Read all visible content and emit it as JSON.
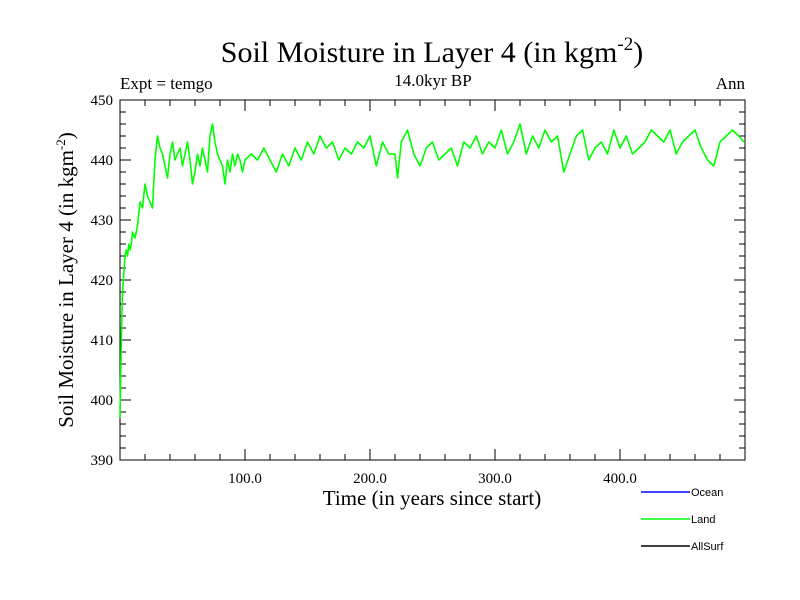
{
  "chart_data": {
    "type": "line",
    "title": {
      "text": "Soil Moisture in Layer 4 (in kgm",
      "sup": "-2",
      "close": ")"
    },
    "subtitle_left": "Expt = temgo",
    "subtitle_center": "14.0kyr BP",
    "subtitle_right": "Ann",
    "xlabel": "Time (in years since start)",
    "ylabel": {
      "text": "Soil Moisture in Layer 4 (in kgm",
      "sup": "-2",
      "close": ")"
    },
    "xlim": [
      0,
      500
    ],
    "ylim": [
      390,
      450
    ],
    "x_ticks": [
      {
        "value": 100,
        "label": "100.0"
      },
      {
        "value": 200,
        "label": "200.0"
      },
      {
        "value": 300,
        "label": "300.0"
      },
      {
        "value": 400,
        "label": "400.0"
      }
    ],
    "y_ticks": [
      {
        "value": 390,
        "label": "390"
      },
      {
        "value": 400,
        "label": "400"
      },
      {
        "value": 410,
        "label": "410"
      },
      {
        "value": 420,
        "label": "420"
      },
      {
        "value": 430,
        "label": "430"
      },
      {
        "value": 440,
        "label": "440"
      },
      {
        "value": 450,
        "label": "450"
      }
    ],
    "legend_position": "bottom-right",
    "series": [
      {
        "name": "Ocean",
        "color": "#0000ff",
        "x": [],
        "y": []
      },
      {
        "name": "Land",
        "color": "#00ff00",
        "x": [
          0,
          1,
          2,
          3,
          4,
          5,
          6,
          7,
          8,
          9,
          10,
          12,
          14,
          16,
          18,
          20,
          22,
          24,
          26,
          28,
          30,
          32,
          34,
          36,
          38,
          40,
          42,
          44,
          46,
          48,
          50,
          52,
          54,
          56,
          58,
          60,
          62,
          64,
          66,
          68,
          70,
          72,
          74,
          76,
          78,
          80,
          82,
          84,
          86,
          88,
          90,
          92,
          94,
          96,
          98,
          100,
          105,
          110,
          115,
          120,
          125,
          130,
          135,
          140,
          145,
          150,
          155,
          160,
          165,
          170,
          175,
          180,
          185,
          190,
          195,
          200,
          205,
          210,
          215,
          220,
          222,
          225,
          230,
          235,
          240,
          245,
          250,
          255,
          260,
          265,
          270,
          275,
          280,
          285,
          290,
          295,
          300,
          305,
          310,
          315,
          320,
          325,
          330,
          335,
          340,
          345,
          350,
          355,
          360,
          365,
          370,
          375,
          380,
          385,
          390,
          395,
          400,
          405,
          410,
          415,
          420,
          425,
          430,
          435,
          440,
          445,
          450,
          455,
          460,
          465,
          470,
          475,
          480,
          485,
          490,
          495,
          499
        ],
        "y": [
          397,
          410,
          418,
          421,
          424,
          425,
          424,
          426,
          425,
          426,
          428,
          427,
          429,
          433,
          432,
          436,
          434,
          433,
          432,
          440,
          444,
          442,
          441,
          439,
          437,
          441,
          443,
          440,
          441,
          442,
          439,
          441,
          443,
          440,
          436,
          438,
          441,
          439,
          442,
          440,
          438,
          444,
          446,
          443,
          441,
          440,
          439,
          436,
          440,
          438,
          441,
          439,
          441,
          440,
          438,
          440,
          441,
          440,
          442,
          440,
          438,
          441,
          439,
          442,
          440,
          443,
          441,
          444,
          442,
          443,
          440,
          442,
          441,
          443,
          442,
          444,
          439,
          443,
          441,
          441,
          437,
          443,
          445,
          441,
          439,
          442,
          443,
          440,
          441,
          442,
          439,
          443,
          442,
          444,
          441,
          443,
          442,
          445,
          441,
          443,
          446,
          441,
          444,
          442,
          445,
          443,
          444,
          438,
          441,
          444,
          445,
          440,
          442,
          443,
          441,
          445,
          442,
          444,
          441,
          442,
          443,
          445,
          444,
          443,
          445,
          441,
          443,
          444,
          445,
          442,
          440,
          439,
          443,
          444,
          445,
          444,
          443
        ]
      },
      {
        "name": "AllSurf",
        "color": "#000000",
        "x": [],
        "y": []
      }
    ]
  }
}
